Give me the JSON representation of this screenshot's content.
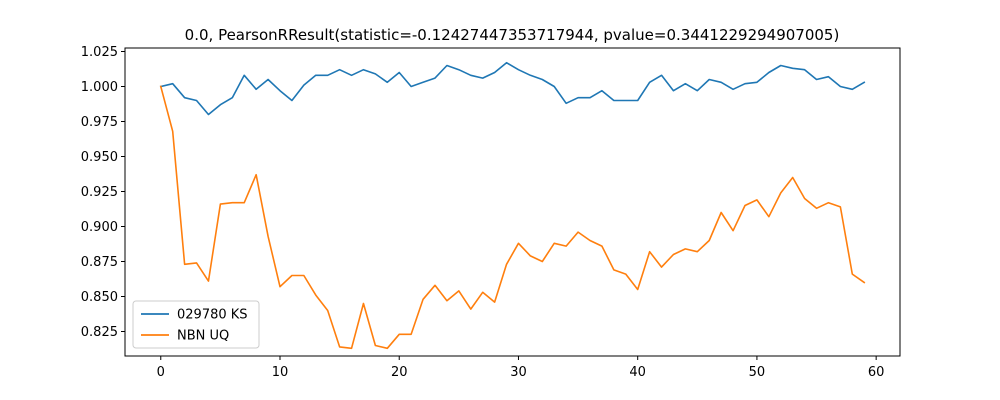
{
  "chart_data": {
    "type": "line",
    "title": "0.0, PearsonRResult(statistic=-0.12427447353717944, pvalue=0.3441229294907005)",
    "xlabel": "",
    "ylabel": "",
    "xlim": [
      -3,
      62
    ],
    "ylim": [
      0.8075,
      1.0275
    ],
    "xticks": [
      0,
      10,
      20,
      30,
      40,
      50,
      60
    ],
    "xtick_labels": [
      "0",
      "10",
      "20",
      "30",
      "40",
      "50",
      "60"
    ],
    "yticks": [
      0.825,
      0.85,
      0.875,
      0.9,
      0.925,
      0.95,
      0.975,
      1.0,
      1.025
    ],
    "ytick_labels": [
      "0.825",
      "0.850",
      "0.875",
      "0.900",
      "0.925",
      "0.950",
      "0.975",
      "1.000",
      "1.025"
    ],
    "grid": false,
    "legend_position": "lower-left",
    "series": [
      {
        "name": "029780 KS",
        "color": "#1f77b4",
        "values": [
          1.0,
          1.002,
          0.992,
          0.99,
          0.98,
          0.987,
          0.992,
          1.008,
          0.998,
          1.005,
          0.997,
          0.99,
          1.001,
          1.008,
          1.008,
          1.012,
          1.008,
          1.012,
          1.009,
          1.003,
          1.01,
          1.0,
          1.003,
          1.006,
          1.015,
          1.012,
          1.008,
          1.006,
          1.01,
          1.017,
          1.012,
          1.008,
          1.005,
          1.0,
          0.988,
          0.992,
          0.992,
          0.997,
          0.99,
          0.99,
          0.99,
          1.003,
          1.008,
          0.997,
          1.002,
          0.997,
          1.005,
          1.003,
          0.998,
          1.002,
          1.003,
          1.01,
          1.015,
          1.013,
          1.012,
          1.005,
          1.007,
          1.0,
          0.998,
          1.003
        ]
      },
      {
        "name": "NBN UQ",
        "color": "#ff7f0e",
        "values": [
          1.0,
          0.968,
          0.873,
          0.874,
          0.861,
          0.916,
          0.917,
          0.917,
          0.937,
          0.893,
          0.857,
          0.865,
          0.865,
          0.851,
          0.84,
          0.814,
          0.813,
          0.845,
          0.815,
          0.813,
          0.823,
          0.823,
          0.848,
          0.858,
          0.847,
          0.854,
          0.841,
          0.853,
          0.846,
          0.873,
          0.888,
          0.879,
          0.875,
          0.888,
          0.886,
          0.896,
          0.89,
          0.886,
          0.869,
          0.866,
          0.855,
          0.882,
          0.871,
          0.88,
          0.884,
          0.882,
          0.89,
          0.91,
          0.897,
          0.915,
          0.919,
          0.907,
          0.924,
          0.935,
          0.92,
          0.913,
          0.917,
          0.914,
          0.866,
          0.86
        ]
      }
    ]
  }
}
